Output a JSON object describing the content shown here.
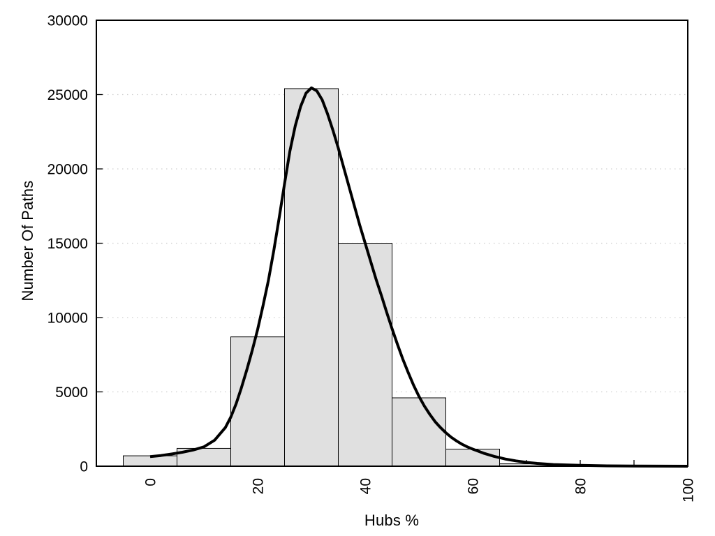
{
  "figure": {
    "kind": "histogram-with-density-curve"
  },
  "chart_data": {
    "type": "bar",
    "subtype": "histogram with overlaid density curve",
    "title": "",
    "xlabel": "Hubs %",
    "ylabel": "Number Of Paths",
    "xlim": [
      -10,
      100
    ],
    "ylim": [
      0,
      30000
    ],
    "x_tick_values": [
      0,
      20,
      40,
      60,
      80,
      100
    ],
    "x_tick_labels": [
      "0",
      "20",
      "40",
      "60",
      "80",
      "100"
    ],
    "x_minor_tick_step": 10,
    "x_tick_label_rotation": -90,
    "y_tick_values": [
      0,
      5000,
      10000,
      15000,
      20000,
      25000,
      30000
    ],
    "y_tick_labels": [
      "0",
      "5000",
      "10000",
      "15000",
      "20000",
      "25000",
      "30000"
    ],
    "grid_y_values": [
      5000,
      10000,
      15000,
      20000,
      25000
    ],
    "grid_style": "dotted horizontal",
    "legend": null,
    "bars": {
      "bin_width": 10,
      "centers": [
        0,
        10,
        20,
        30,
        40,
        50,
        60,
        70
      ],
      "heights": [
        700,
        1200,
        8700,
        25400,
        15000,
        4600,
        1150,
        160
      ]
    },
    "curve": {
      "name": "density-curve",
      "points": [
        [
          0,
          650
        ],
        [
          2,
          720
        ],
        [
          4,
          820
        ],
        [
          6,
          940
        ],
        [
          8,
          1090
        ],
        [
          10,
          1300
        ],
        [
          12,
          1750
        ],
        [
          14,
          2600
        ],
        [
          15,
          3300
        ],
        [
          16,
          4200
        ],
        [
          17,
          5300
        ],
        [
          18,
          6500
        ],
        [
          19,
          7800
        ],
        [
          20,
          9200
        ],
        [
          21,
          10800
        ],
        [
          22,
          12500
        ],
        [
          23,
          14500
        ],
        [
          24,
          16700
        ],
        [
          25,
          19000
        ],
        [
          26,
          21200
        ],
        [
          27,
          22900
        ],
        [
          28,
          24200
        ],
        [
          29,
          25100
        ],
        [
          30,
          25450
        ],
        [
          31,
          25250
        ],
        [
          32,
          24650
        ],
        [
          33,
          23700
        ],
        [
          34,
          22600
        ],
        [
          35,
          21400
        ],
        [
          36,
          20100
        ],
        [
          37,
          18800
        ],
        [
          38,
          17500
        ],
        [
          39,
          16200
        ],
        [
          40,
          15000
        ],
        [
          41,
          13800
        ],
        [
          42,
          12600
        ],
        [
          43,
          11500
        ],
        [
          44,
          10350
        ],
        [
          45,
          9250
        ],
        [
          46,
          8200
        ],
        [
          47,
          7200
        ],
        [
          48,
          6300
        ],
        [
          49,
          5450
        ],
        [
          50,
          4700
        ],
        [
          51,
          4050
        ],
        [
          52,
          3500
        ],
        [
          53,
          3000
        ],
        [
          54,
          2600
        ],
        [
          55,
          2250
        ],
        [
          56,
          1950
        ],
        [
          57,
          1700
        ],
        [
          58,
          1480
        ],
        [
          59,
          1300
        ],
        [
          60,
          1150
        ],
        [
          62,
          880
        ],
        [
          64,
          660
        ],
        [
          66,
          490
        ],
        [
          68,
          360
        ],
        [
          70,
          260
        ],
        [
          72,
          190
        ],
        [
          75,
          115
        ],
        [
          80,
          55
        ],
        [
          85,
          25
        ],
        [
          90,
          10
        ],
        [
          95,
          4
        ],
        [
          100,
          1
        ]
      ]
    },
    "colors": {
      "bar_fill": "#e0e0e0",
      "bar_border": "#000000",
      "curve": "#000000",
      "grid": "#cfcfcf",
      "axis": "#000000",
      "text": "#000000",
      "background": "#ffffff"
    }
  }
}
